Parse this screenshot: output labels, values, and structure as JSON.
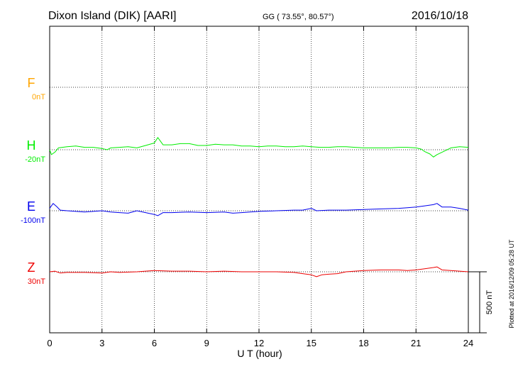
{
  "header": {
    "station": "Dixon Island (DIK)  [AARI]",
    "coords": "GG ( 73.55°,  80.57°)",
    "date": "2016/10/18"
  },
  "side_note": "Plotted at 2016/12/09 05:28 UT",
  "chart_data": {
    "type": "line",
    "xlabel": "U T (hour)",
    "x_ticks": [
      0,
      3,
      6,
      9,
      12,
      15,
      18,
      21,
      24
    ],
    "xlim": [
      0,
      24
    ],
    "scale_label": "500 nT",
    "grid": true,
    "series": [
      {
        "name": "F",
        "offset": "0nT",
        "color": "#ffa500",
        "baseline_nT": 0,
        "points": []
      },
      {
        "name": "H",
        "offset": "-20nT",
        "color": "#00ee00",
        "baseline_nT": -20,
        "points": [
          [
            0,
            -20
          ],
          [
            0.1,
            -60
          ],
          [
            0.3,
            -40
          ],
          [
            0.5,
            -5
          ],
          [
            1,
            5
          ],
          [
            1.5,
            10
          ],
          [
            2,
            0
          ],
          [
            2.5,
            0
          ],
          [
            3,
            -10
          ],
          [
            3.3,
            -20
          ],
          [
            3.5,
            -5
          ],
          [
            4,
            0
          ],
          [
            4.5,
            5
          ],
          [
            5,
            -5
          ],
          [
            5.5,
            15
          ],
          [
            6,
            35
          ],
          [
            6.2,
            80
          ],
          [
            6.5,
            20
          ],
          [
            7,
            20
          ],
          [
            7.5,
            30
          ],
          [
            8,
            30
          ],
          [
            8.5,
            15
          ],
          [
            9,
            15
          ],
          [
            9.5,
            25
          ],
          [
            10,
            20
          ],
          [
            10.5,
            20
          ],
          [
            11,
            10
          ],
          [
            11.5,
            10
          ],
          [
            12,
            5
          ],
          [
            12.5,
            10
          ],
          [
            13,
            10
          ],
          [
            13.5,
            5
          ],
          [
            14,
            5
          ],
          [
            14.5,
            10
          ],
          [
            15,
            5
          ],
          [
            15.5,
            0
          ],
          [
            16,
            0
          ],
          [
            16.5,
            5
          ],
          [
            17,
            5
          ],
          [
            17.5,
            0
          ],
          [
            18,
            -5
          ],
          [
            18.5,
            -5
          ],
          [
            19,
            -5
          ],
          [
            19.5,
            -5
          ],
          [
            20,
            0
          ],
          [
            20.5,
            0
          ],
          [
            21,
            -5
          ],
          [
            21.3,
            -15
          ],
          [
            21.5,
            -35
          ],
          [
            21.8,
            -55
          ],
          [
            22,
            -80
          ],
          [
            22.2,
            -60
          ],
          [
            22.5,
            -40
          ],
          [
            23,
            -5
          ],
          [
            23.5,
            5
          ],
          [
            24,
            0
          ]
        ]
      },
      {
        "name": "E",
        "offset": "-100nT",
        "color": "#0000ee",
        "baseline_nT": -100,
        "points": [
          [
            0,
            -80
          ],
          [
            0.2,
            -40
          ],
          [
            0.4,
            -65
          ],
          [
            0.6,
            -95
          ],
          [
            1,
            -100
          ],
          [
            1.5,
            -105
          ],
          [
            2,
            -110
          ],
          [
            2.5,
            -105
          ],
          [
            3,
            -100
          ],
          [
            3.5,
            -110
          ],
          [
            4,
            -115
          ],
          [
            4.5,
            -120
          ],
          [
            5,
            -100
          ],
          [
            5.5,
            -115
          ],
          [
            6,
            -130
          ],
          [
            6.2,
            -140
          ],
          [
            6.5,
            -115
          ],
          [
            7,
            -115
          ],
          [
            8,
            -110
          ],
          [
            9,
            -115
          ],
          [
            10,
            -110
          ],
          [
            10.5,
            -120
          ],
          [
            11,
            -115
          ],
          [
            12,
            -105
          ],
          [
            13,
            -100
          ],
          [
            14,
            -95
          ],
          [
            14.5,
            -95
          ],
          [
            15,
            -80
          ],
          [
            15.3,
            -100
          ],
          [
            16,
            -95
          ],
          [
            17,
            -95
          ],
          [
            18,
            -90
          ],
          [
            19,
            -85
          ],
          [
            20,
            -80
          ],
          [
            20.5,
            -75
          ],
          [
            21,
            -70
          ],
          [
            21.5,
            -60
          ],
          [
            22,
            -50
          ],
          [
            22.2,
            -40
          ],
          [
            22.5,
            -70
          ],
          [
            23,
            -70
          ],
          [
            23.5,
            -80
          ],
          [
            24,
            -95
          ]
        ]
      },
      {
        "name": "Z",
        "offset": "30nT",
        "color": "#ee0000",
        "baseline_nT": 30,
        "points": [
          [
            0,
            30
          ],
          [
            0.3,
            35
          ],
          [
            0.6,
            20
          ],
          [
            1,
            25
          ],
          [
            2,
            25
          ],
          [
            3,
            20
          ],
          [
            3.5,
            30
          ],
          [
            4,
            25
          ],
          [
            5,
            30
          ],
          [
            5.5,
            35
          ],
          [
            6,
            40
          ],
          [
            7,
            35
          ],
          [
            8,
            35
          ],
          [
            9,
            30
          ],
          [
            10,
            35
          ],
          [
            11,
            30
          ],
          [
            12,
            30
          ],
          [
            13,
            30
          ],
          [
            14,
            25
          ],
          [
            14.5,
            15
          ],
          [
            15,
            5
          ],
          [
            15.3,
            -10
          ],
          [
            15.6,
            5
          ],
          [
            16,
            10
          ],
          [
            16.5,
            15
          ],
          [
            17,
            30
          ],
          [
            18,
            40
          ],
          [
            19,
            45
          ],
          [
            20,
            45
          ],
          [
            20.5,
            40
          ],
          [
            21,
            45
          ],
          [
            21.5,
            55
          ],
          [
            22,
            65
          ],
          [
            22.2,
            70
          ],
          [
            22.5,
            45
          ],
          [
            23,
            40
          ],
          [
            23.5,
            35
          ],
          [
            24,
            30
          ]
        ]
      }
    ]
  }
}
